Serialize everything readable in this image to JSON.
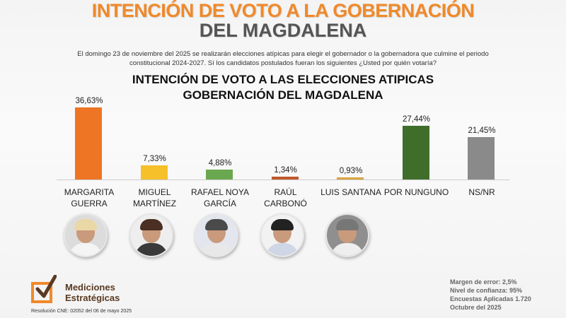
{
  "header": {
    "title_line1": "INTENCIÓN DE VOTO A LA GOBERNACIÓN",
    "title_line2": "DEL MAGDALENA"
  },
  "description": "El domingo 23 de noviembre del 2025 se realizarán elecciones atípicas para elegir el gobernador o la gobernadora que culmine el periodo constitucional 2024-2027. Sí los candidatos postulados fueran los siguientes ¿Usted por quién votaría?",
  "chart_title_line1": "INTENCIÓN DE VOTO A LAS ELECCIONES ATIPICAS",
  "chart_title_line2": "GOBERNACIÓN DEL MAGDALENA",
  "chart_data": {
    "type": "bar",
    "title": "INTENCIÓN DE VOTO A LAS ELECCIONES ATIPICAS GOBERNACIÓN DEL MAGDALENA",
    "categories": [
      "MARGARITA GUERRA",
      "MIGUEL MARTÍNEZ",
      "RAFAEL NOYA GARCÍA",
      "RAÚL CARBONÓ",
      "LUIS SANTANA",
      "POR NUNGUNO",
      "NS/NR"
    ],
    "values": [
      36.63,
      7.33,
      4.88,
      1.34,
      0.93,
      27.44,
      21.45
    ],
    "value_labels": [
      "36,63%",
      "7,33%",
      "4,88%",
      "1,34%",
      "0,93%",
      "27,44%",
      "21,45%"
    ],
    "colors": [
      "#ee7524",
      "#f5c02a",
      "#6aa84f",
      "#c0582a",
      "#d9a441",
      "#3f6e2a",
      "#8a8a8a"
    ],
    "xlabel": "",
    "ylabel": "",
    "ylim": [
      0,
      40
    ],
    "grid": false,
    "legend": "none"
  },
  "bars": [
    {
      "label_l1": "MARGARITA",
      "label_l2": "GUERRA",
      "value": "36,63%"
    },
    {
      "label_l1": "MIGUEL",
      "label_l2": "MARTÍNEZ",
      "value": "7,33%"
    },
    {
      "label_l1": "RAFAEL NOYA",
      "label_l2": "GARCÍA",
      "value": "4,88%"
    },
    {
      "label_l1": "RAÚL CARBONÓ",
      "label_l2": "",
      "value": "1,34%"
    },
    {
      "label_l1": "LUIS SANTANA",
      "label_l2": "",
      "value": "0,93%"
    },
    {
      "label_l1": "POR NUNGUNO",
      "label_l2": "",
      "value": "27,44%"
    },
    {
      "label_l1": "NS/NR",
      "label_l2": "",
      "value": "21,45%"
    }
  ],
  "logo": {
    "name_line1": "Mediciones",
    "name_line2": "Estratégicas",
    "resolution": "Resolución CNE: 02052 del 06 de mayo 2025"
  },
  "meta": {
    "margin": "Margen de error: 2,5%",
    "confidence": "Nivel de confianza: 95%",
    "surveys": "Encuestas Aplicadas 1.720",
    "date": "Octubre del 2025"
  }
}
